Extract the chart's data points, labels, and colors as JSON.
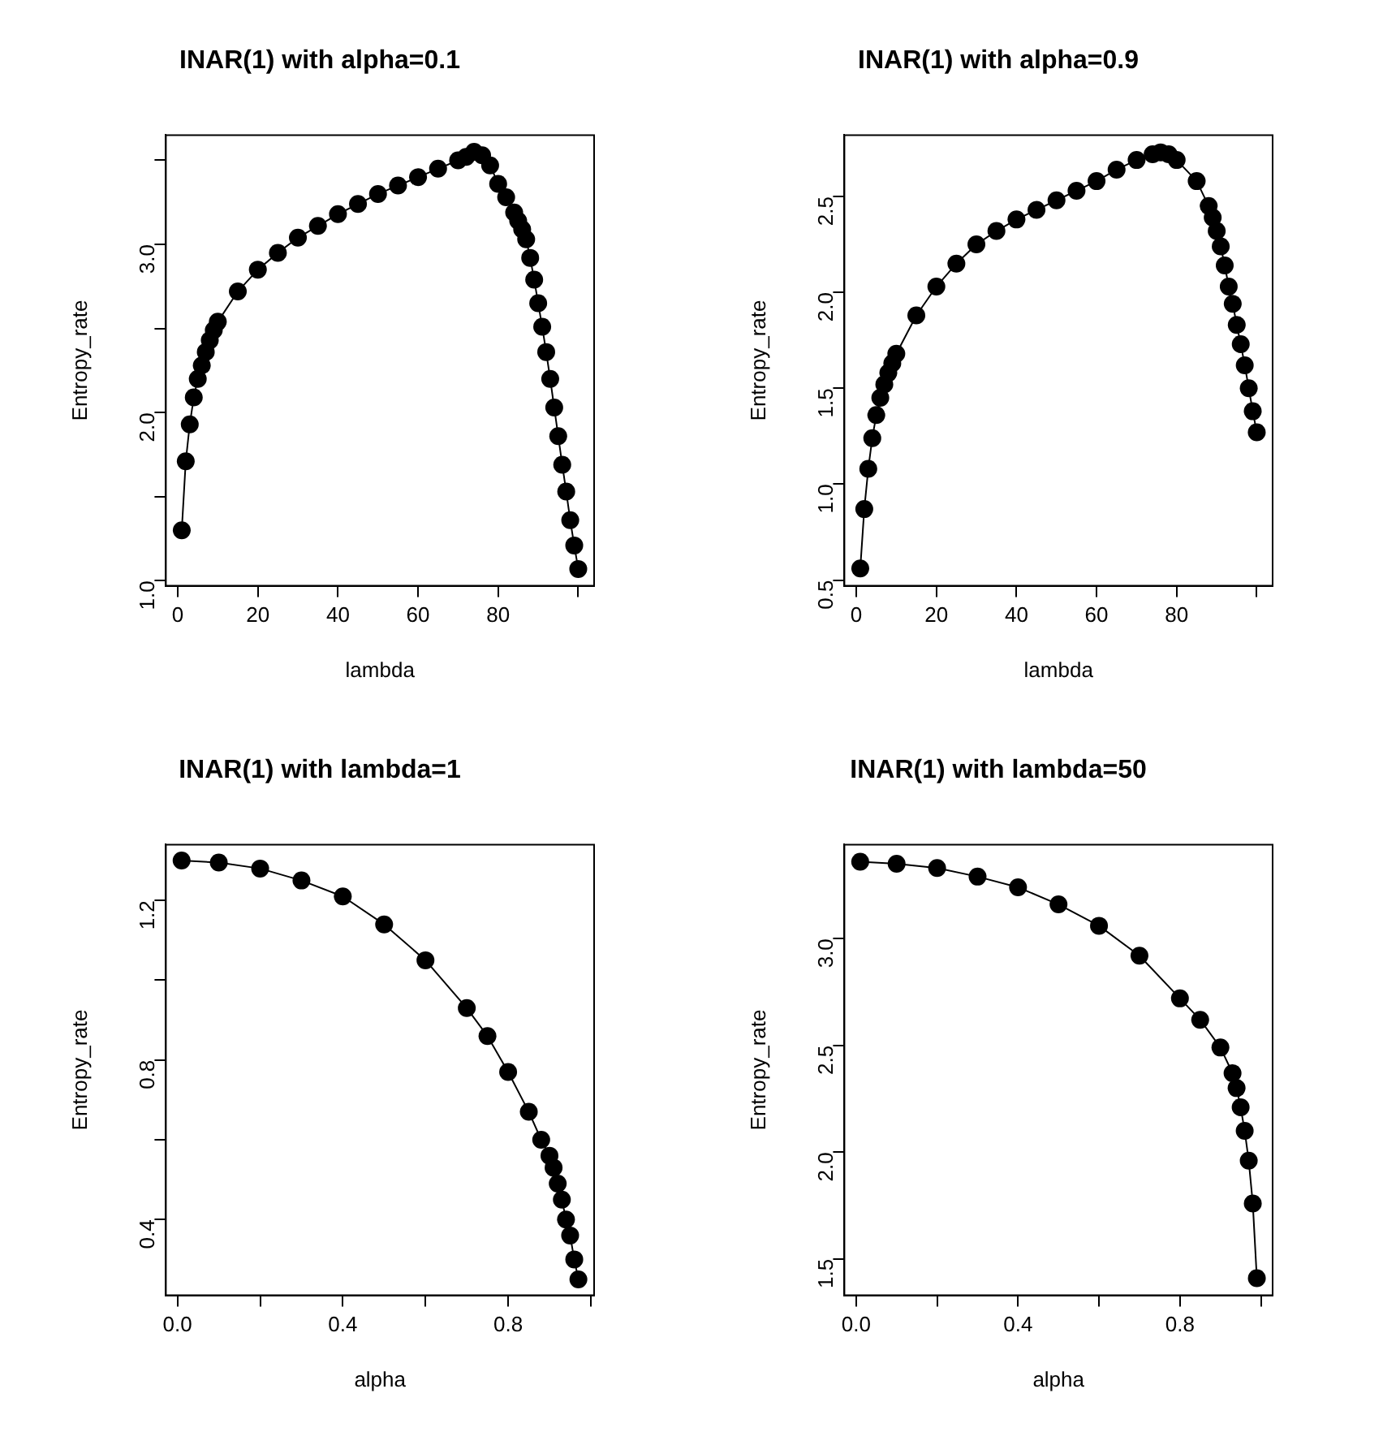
{
  "chart_data": [
    {
      "type": "line",
      "title": "INAR(1) with alpha=0.1",
      "xlabel": "lambda",
      "ylabel": "Entropy_rate",
      "marker": "circle",
      "grid": false,
      "legend": false,
      "x": [
        1,
        2,
        3,
        4,
        5,
        6,
        7,
        8,
        9,
        10,
        15,
        20,
        25,
        30,
        35,
        40,
        45,
        50,
        55,
        60,
        65,
        70,
        72,
        74,
        76,
        78,
        80,
        82,
        84,
        85,
        86,
        87,
        88,
        89,
        90,
        91,
        92,
        93,
        94,
        95,
        96,
        97,
        98,
        99,
        100
      ],
      "series": [
        {
          "color": "#000000",
          "values": [
            1.3,
            1.71,
            1.93,
            2.09,
            2.2,
            2.28,
            2.36,
            2.43,
            2.49,
            2.54,
            2.72,
            2.85,
            2.95,
            3.04,
            3.11,
            3.18,
            3.24,
            3.3,
            3.35,
            3.4,
            3.45,
            3.5,
            3.52,
            3.55,
            3.53,
            3.47,
            3.36,
            3.28,
            3.19,
            3.14,
            3.09,
            3.03,
            2.92,
            2.79,
            2.65,
            2.51,
            2.36,
            2.2,
            2.03,
            1.86,
            1.69,
            1.53,
            1.36,
            1.21,
            1.07
          ]
        }
      ],
      "xlim": [
        -2.96,
        103.96
      ],
      "xticks": [
        0,
        20,
        40,
        60,
        80,
        {
          "value": 100,
          "label": null
        }
      ],
      "ylim": [
        0.97,
        3.65
      ],
      "yticks": [
        {
          "value": 1,
          "label": "1.0"
        },
        {
          "value": 1.5,
          "label": null
        },
        {
          "value": 2,
          "label": "2.0"
        },
        {
          "value": 2.5,
          "label": null
        },
        {
          "value": 3,
          "label": "3.0"
        },
        {
          "value": 3.5,
          "label": null
        }
      ]
    },
    {
      "type": "line",
      "title": "INAR(1) with alpha=0.9",
      "xlabel": "lambda",
      "ylabel": "Entropy_rate",
      "marker": "circle",
      "grid": false,
      "legend": false,
      "x": [
        1,
        2,
        3,
        4,
        5,
        6,
        7,
        8,
        9,
        10,
        15,
        20,
        25,
        30,
        35,
        40,
        45,
        50,
        55,
        60,
        65,
        70,
        74,
        76,
        78,
        80,
        85,
        88,
        89,
        90,
        91,
        92,
        93,
        94,
        95,
        96,
        97,
        98,
        99,
        100
      ],
      "series": [
        {
          "color": "#000000",
          "values": [
            0.56,
            0.87,
            1.08,
            1.24,
            1.36,
            1.45,
            1.52,
            1.58,
            1.63,
            1.68,
            1.88,
            2.03,
            2.15,
            2.25,
            2.32,
            2.38,
            2.43,
            2.48,
            2.53,
            2.58,
            2.64,
            2.69,
            2.72,
            2.73,
            2.72,
            2.69,
            2.58,
            2.45,
            2.39,
            2.32,
            2.24,
            2.14,
            2.03,
            1.94,
            1.83,
            1.73,
            1.62,
            1.5,
            1.38,
            1.27
          ]
        }
      ],
      "xlim": [
        -2.96,
        103.96
      ],
      "xticks": [
        0,
        20,
        40,
        60,
        80,
        {
          "value": 100,
          "label": null
        }
      ],
      "ylim": [
        0.47,
        2.82
      ],
      "yticks": [
        0.5,
        {
          "value": 1,
          "label": "1.0"
        },
        1.5,
        {
          "value": 2,
          "label": "2.0"
        },
        2.5
      ]
    },
    {
      "type": "line",
      "title": "INAR(1) with lambda=1",
      "xlabel": "alpha",
      "ylabel": "Entropy_rate",
      "marker": "circle",
      "grid": false,
      "legend": false,
      "x": [
        0.01,
        0.1,
        0.2,
        0.3,
        0.4,
        0.5,
        0.6,
        0.7,
        0.75,
        0.8,
        0.85,
        0.88,
        0.9,
        0.91,
        0.92,
        0.93,
        0.94,
        0.95,
        0.96,
        0.97
      ],
      "series": [
        {
          "color": "#000000",
          "values": [
            1.3,
            1.295,
            1.28,
            1.25,
            1.21,
            1.14,
            1.05,
            0.93,
            0.86,
            0.77,
            0.67,
            0.6,
            0.56,
            0.53,
            0.49,
            0.45,
            0.4,
            0.36,
            0.3,
            0.25
          ]
        }
      ],
      "xlim": [
        -0.028,
        1.008
      ],
      "xticks": [
        {
          "value": 0,
          "label": "0.0"
        },
        {
          "value": 0.2,
          "label": null
        },
        0.4,
        {
          "value": 0.6,
          "label": null
        },
        0.8,
        {
          "value": 1,
          "label": null
        }
      ],
      "ylim": [
        0.21,
        1.34
      ],
      "yticks": [
        0.4,
        {
          "value": 0.6,
          "label": null
        },
        0.8,
        {
          "value": 1,
          "label": null
        },
        1.2
      ]
    },
    {
      "type": "line",
      "title": "INAR(1) with lambda=50",
      "xlabel": "alpha",
      "ylabel": "Entropy_rate",
      "marker": "circle",
      "grid": false,
      "legend": false,
      "x": [
        0.01,
        0.1,
        0.2,
        0.3,
        0.4,
        0.5,
        0.6,
        0.7,
        0.8,
        0.85,
        0.9,
        0.93,
        0.94,
        0.95,
        0.96,
        0.97,
        0.98,
        0.99
      ],
      "series": [
        {
          "color": "#000000",
          "values": [
            3.36,
            3.35,
            3.33,
            3.29,
            3.24,
            3.16,
            3.06,
            2.92,
            2.72,
            2.62,
            2.49,
            2.37,
            2.3,
            2.21,
            2.1,
            1.96,
            1.76,
            1.41
          ]
        }
      ],
      "xlim": [
        -0.029,
        1.029
      ],
      "xticks": [
        {
          "value": 0,
          "label": "0.0"
        },
        {
          "value": 0.2,
          "label": null
        },
        0.4,
        {
          "value": 0.6,
          "label": null
        },
        0.8,
        {
          "value": 1,
          "label": null
        }
      ],
      "ylim": [
        1.33,
        3.44
      ],
      "yticks": [
        1.5,
        {
          "value": 2,
          "label": "2.0"
        },
        2.5,
        {
          "value": 3,
          "label": "3.0"
        }
      ]
    }
  ]
}
